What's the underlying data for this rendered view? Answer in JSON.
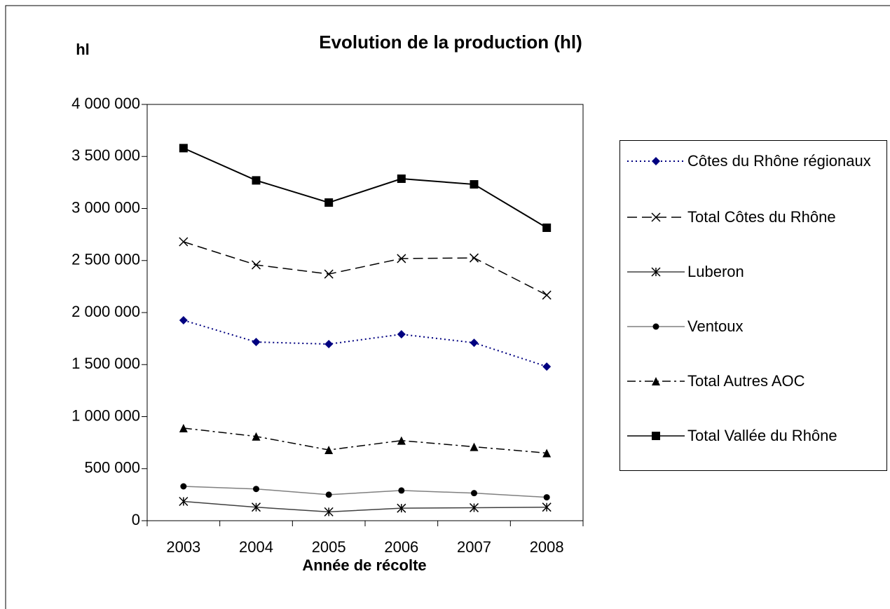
{
  "chart_data": {
    "type": "line",
    "title": "Evolution de la production (hl)",
    "y_label": "hl",
    "x_label": "Année de récolte",
    "categories": [
      "2003",
      "2004",
      "2005",
      "2006",
      "2007",
      "2008"
    ],
    "ylim": [
      0,
      4000000
    ],
    "yticks": [
      0,
      {
        "value": 500000,
        "label": "500 000"
      },
      {
        "value": 1000000,
        "label": "1 000 000"
      },
      {
        "value": 1500000,
        "label": "1 500 000"
      },
      {
        "value": 2000000,
        "label": "2 000 000"
      },
      {
        "value": 2500000,
        "label": "2 500 000"
      },
      {
        "value": 3000000,
        "label": "3 000 000"
      },
      {
        "value": 3500000,
        "label": "3 500 000"
      },
      {
        "value": 4000000,
        "label": "4 000 000"
      }
    ],
    "grid": false,
    "legend": "right",
    "series": [
      {
        "name": "Côtes du Rhône régionaux",
        "color": "#000080",
        "marker": "diamond",
        "line_style": "dotted",
        "values": [
          1926000,
          1717000,
          1697000,
          1791000,
          1710000,
          1481000
        ]
      },
      {
        "name": "Total Côtes du Rhône",
        "color": "#000000",
        "marker": "x",
        "line_style": "dashed",
        "values": [
          2680000,
          2458000,
          2370000,
          2519000,
          2525000,
          2168000
        ]
      },
      {
        "name": "Luberon",
        "color": "#404040",
        "marker": "asterisk",
        "line_style": "solid",
        "values": [
          185000,
          130000,
          85000,
          120000,
          125000,
          130000
        ]
      },
      {
        "name": "Ventoux",
        "color": "#808080",
        "marker": "circle",
        "line_style": "solid",
        "values": [
          330000,
          305000,
          250000,
          290000,
          265000,
          225000
        ]
      },
      {
        "name": "Total Autres AOC",
        "color": "#000000",
        "marker": "triangle",
        "line_style": "dashdot",
        "values": [
          890000,
          810000,
          680000,
          770000,
          710000,
          650000
        ]
      },
      {
        "name": "Total Vallée du Rhône",
        "color": "#000000",
        "marker": "square",
        "line_style": "solid",
        "values": [
          3580000,
          3270000,
          3057000,
          3286000,
          3232000,
          2815000
        ]
      }
    ]
  }
}
